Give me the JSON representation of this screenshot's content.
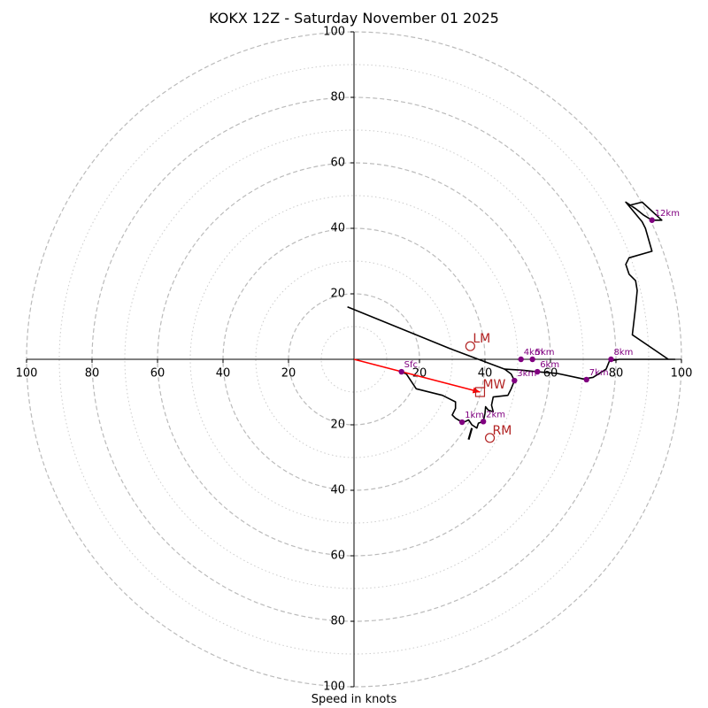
{
  "chart_data": {
    "type": "hodograph",
    "title": "KOKX 12Z - Saturday November 01 2025",
    "xlabel": "Speed in knots",
    "ring_values": [
      20,
      40,
      60,
      80,
      100
    ],
    "minor_ring_values": [
      10,
      30,
      50,
      70,
      90
    ],
    "axis_max": 100,
    "tick_labels": {
      "x_left": [
        "100",
        "80",
        "60",
        "40",
        "20"
      ],
      "x_right": [
        "20",
        "40",
        "60",
        "80",
        "100"
      ],
      "y_up": [
        "20",
        "40",
        "60",
        "80",
        "100"
      ],
      "y_down": [
        "20",
        "40",
        "60",
        "80",
        "100"
      ]
    },
    "hodograph_line": [
      [
        14.5,
        -3.8
      ],
      [
        16,
        -4.5
      ],
      [
        17,
        -6
      ],
      [
        19,
        -9
      ],
      [
        27,
        -11
      ],
      [
        31,
        -13
      ],
      [
        31,
        -15
      ],
      [
        30,
        -17
      ],
      [
        31,
        -18
      ],
      [
        33,
        -19.2
      ],
      [
        34,
        -19
      ],
      [
        35,
        -18.5
      ],
      [
        36,
        -20
      ],
      [
        37.5,
        -21
      ],
      [
        38,
        -19.5
      ],
      [
        39.5,
        -19
      ],
      [
        40,
        -16.5
      ],
      [
        40.2,
        -14.5
      ],
      [
        41,
        -15.5
      ],
      [
        42.5,
        -16
      ],
      [
        42,
        -14
      ],
      [
        42.5,
        -11.5
      ],
      [
        47,
        -11
      ],
      [
        48,
        -9
      ],
      [
        49,
        -6.5
      ],
      [
        48,
        -4.5
      ],
      [
        46,
        -3
      ],
      [
        51,
        -3.3
      ],
      [
        56,
        -3.8
      ],
      [
        62,
        -4.3
      ],
      [
        70,
        -6
      ],
      [
        73,
        -5.5
      ],
      [
        77,
        -3
      ],
      [
        78,
        -0.5
      ],
      [
        81,
        0
      ],
      [
        85,
        0
      ],
      [
        89,
        0
      ],
      [
        93,
        0
      ],
      [
        98,
        0
      ],
      [
        96,
        0
      ],
      [
        85,
        7.5
      ],
      [
        86,
        16
      ],
      [
        86.5,
        21
      ],
      [
        86,
        24
      ],
      [
        84,
        26
      ],
      [
        83,
        29
      ],
      [
        84,
        31
      ],
      [
        91,
        33
      ],
      [
        89,
        40
      ],
      [
        88,
        42
      ],
      [
        83,
        48
      ],
      [
        86,
        46
      ],
      [
        88.5,
        44
      ],
      [
        91,
        42.5
      ],
      [
        94,
        42.5
      ],
      [
        88,
        48
      ],
      [
        84,
        47
      ]
    ],
    "hodograph_tail": [
      [
        -2,
        16
      ],
      [
        30,
        3
      ],
      [
        46,
        -3
      ]
    ],
    "tail_arrow_segment": [
      [
        36,
        -21
      ],
      [
        35,
        -24.5
      ]
    ],
    "height_markers": [
      {
        "label": "Sfc",
        "x": 14.5,
        "y": -3.8
      },
      {
        "label": "1km",
        "x": 33,
        "y": -19.2
      },
      {
        "label": "2km",
        "x": 39.5,
        "y": -19
      },
      {
        "label": "3km",
        "x": 49,
        "y": -6.5
      },
      {
        "label": "4km",
        "x": 51,
        "y": 0
      },
      {
        "label": "5km",
        "x": 54.5,
        "y": 0
      },
      {
        "label": "6km",
        "x": 56,
        "y": -3.8
      },
      {
        "label": "7km",
        "x": 71,
        "y": -6.2
      },
      {
        "label": "8km",
        "x": 78.5,
        "y": 0
      },
      {
        "label": "12km",
        "x": 91,
        "y": 42.5
      }
    ],
    "storm_motion": [
      {
        "label": "LM",
        "x": 35.5,
        "y": 4,
        "marker": "circle"
      },
      {
        "label": "MW",
        "x": 38.5,
        "y": -10,
        "marker": "square"
      },
      {
        "label": "RM",
        "x": 41.5,
        "y": -24,
        "marker": "circle"
      }
    ],
    "mean_wind_vector": {
      "from": [
        0,
        0
      ],
      "to": [
        38.5,
        -10
      ]
    },
    "colors": {
      "line": "#000000",
      "markers": "#800080",
      "storm": "#b22222",
      "vector": "#ff0000",
      "major_ring": "#bbbbbb",
      "minor_ring": "#cccccc",
      "axes": "#000000"
    }
  }
}
